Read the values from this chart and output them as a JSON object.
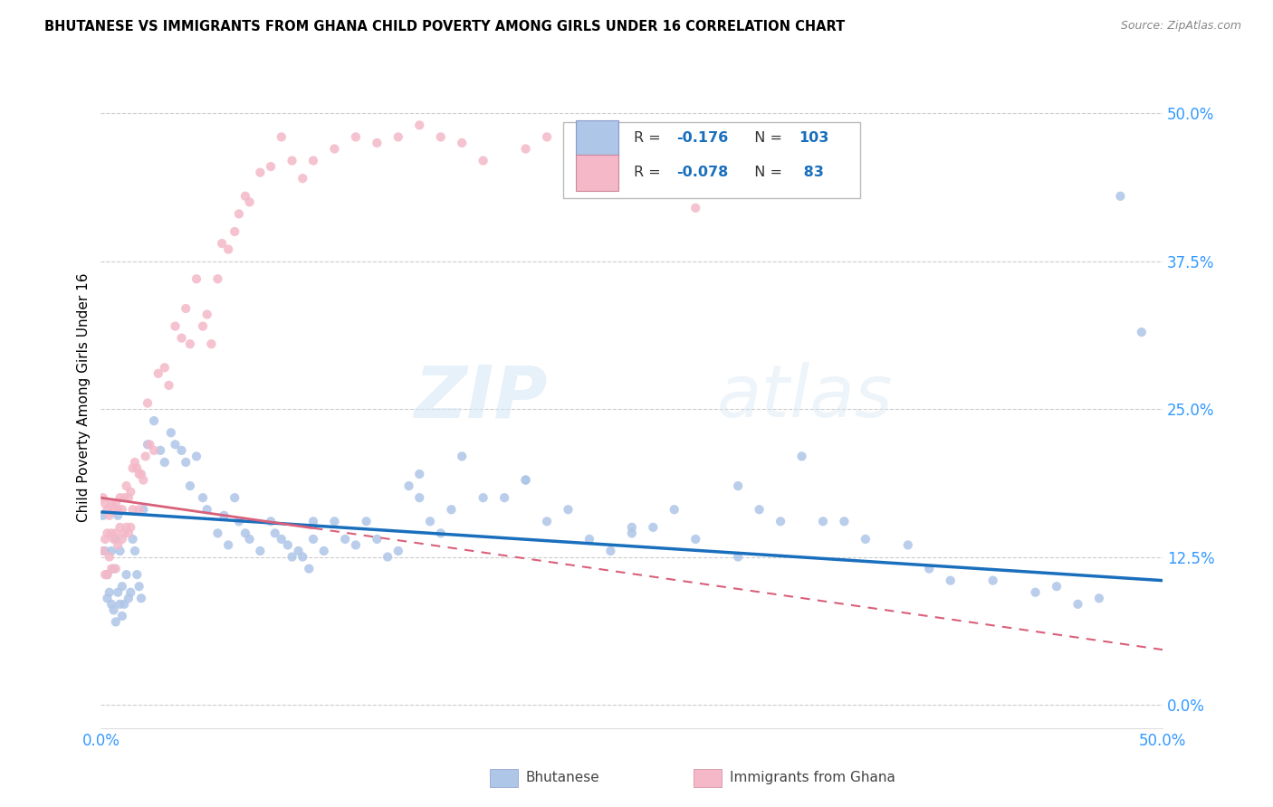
{
  "title": "BHUTANESE VS IMMIGRANTS FROM GHANA CHILD POVERTY AMONG GIRLS UNDER 16 CORRELATION CHART",
  "source": "Source: ZipAtlas.com",
  "ylabel": "Child Poverty Among Girls Under 16",
  "yticks_vals": [
    0.0,
    0.125,
    0.25,
    0.375,
    0.5
  ],
  "yticks_labels": [
    "0.0%",
    "12.5%",
    "25.0%",
    "37.5%",
    "50.0%"
  ],
  "xmin": 0.0,
  "xmax": 0.5,
  "ymin": -0.02,
  "ymax": 0.54,
  "bhutanese_color": "#aec6e8",
  "ghana_color": "#f4b8c8",
  "bhutanese_line_color": "#1a6fbd",
  "ghana_line_color": "#d9607a",
  "watermark_zip": "ZIP",
  "watermark_atlas": "atlas",
  "legend_R_bhutanese": "-0.176",
  "legend_N_bhutanese": "103",
  "legend_R_ghana": "-0.078",
  "legend_N_ghana": "83",
  "bhutanese_x": [
    0.001,
    0.002,
    0.003,
    0.003,
    0.004,
    0.005,
    0.005,
    0.006,
    0.006,
    0.007,
    0.007,
    0.008,
    0.008,
    0.009,
    0.009,
    0.01,
    0.01,
    0.011,
    0.012,
    0.013,
    0.014,
    0.015,
    0.016,
    0.017,
    0.018,
    0.019,
    0.02,
    0.022,
    0.025,
    0.028,
    0.03,
    0.033,
    0.035,
    0.038,
    0.04,
    0.042,
    0.045,
    0.048,
    0.05,
    0.055,
    0.058,
    0.06,
    0.063,
    0.065,
    0.068,
    0.07,
    0.075,
    0.08,
    0.082,
    0.085,
    0.088,
    0.09,
    0.093,
    0.095,
    0.098,
    0.1,
    0.105,
    0.11,
    0.115,
    0.12,
    0.125,
    0.13,
    0.135,
    0.14,
    0.145,
    0.15,
    0.155,
    0.16,
    0.165,
    0.17,
    0.18,
    0.19,
    0.2,
    0.21,
    0.22,
    0.23,
    0.24,
    0.25,
    0.26,
    0.27,
    0.28,
    0.3,
    0.31,
    0.32,
    0.33,
    0.34,
    0.35,
    0.36,
    0.38,
    0.39,
    0.4,
    0.42,
    0.44,
    0.45,
    0.46,
    0.47,
    0.48,
    0.49,
    0.3,
    0.25,
    0.2,
    0.15,
    0.1
  ],
  "bhutanese_y": [
    0.16,
    0.13,
    0.11,
    0.09,
    0.095,
    0.085,
    0.13,
    0.08,
    0.115,
    0.07,
    0.14,
    0.095,
    0.16,
    0.085,
    0.13,
    0.075,
    0.1,
    0.085,
    0.11,
    0.09,
    0.095,
    0.14,
    0.13,
    0.11,
    0.1,
    0.09,
    0.165,
    0.22,
    0.24,
    0.215,
    0.205,
    0.23,
    0.22,
    0.215,
    0.205,
    0.185,
    0.21,
    0.175,
    0.165,
    0.145,
    0.16,
    0.135,
    0.175,
    0.155,
    0.145,
    0.14,
    0.13,
    0.155,
    0.145,
    0.14,
    0.135,
    0.125,
    0.13,
    0.125,
    0.115,
    0.155,
    0.13,
    0.155,
    0.14,
    0.135,
    0.155,
    0.14,
    0.125,
    0.13,
    0.185,
    0.175,
    0.155,
    0.145,
    0.165,
    0.21,
    0.175,
    0.175,
    0.19,
    0.155,
    0.165,
    0.14,
    0.13,
    0.145,
    0.15,
    0.165,
    0.14,
    0.185,
    0.165,
    0.155,
    0.21,
    0.155,
    0.155,
    0.14,
    0.135,
    0.115,
    0.105,
    0.105,
    0.095,
    0.1,
    0.085,
    0.09,
    0.43,
    0.315,
    0.125,
    0.15,
    0.19,
    0.195,
    0.14
  ],
  "ghana_x": [
    0.001,
    0.001,
    0.002,
    0.002,
    0.002,
    0.003,
    0.003,
    0.003,
    0.004,
    0.004,
    0.005,
    0.005,
    0.005,
    0.006,
    0.006,
    0.007,
    0.007,
    0.007,
    0.008,
    0.008,
    0.009,
    0.009,
    0.01,
    0.01,
    0.011,
    0.011,
    0.012,
    0.012,
    0.013,
    0.013,
    0.014,
    0.014,
    0.015,
    0.015,
    0.016,
    0.017,
    0.018,
    0.018,
    0.019,
    0.02,
    0.021,
    0.022,
    0.023,
    0.025,
    0.027,
    0.03,
    0.032,
    0.035,
    0.038,
    0.04,
    0.042,
    0.045,
    0.048,
    0.05,
    0.052,
    0.055,
    0.057,
    0.06,
    0.063,
    0.065,
    0.068,
    0.07,
    0.075,
    0.08,
    0.085,
    0.09,
    0.095,
    0.1,
    0.11,
    0.12,
    0.13,
    0.14,
    0.15,
    0.16,
    0.17,
    0.18,
    0.2,
    0.21,
    0.22,
    0.23,
    0.24,
    0.25,
    0.28
  ],
  "ghana_y": [
    0.175,
    0.13,
    0.17,
    0.14,
    0.11,
    0.165,
    0.145,
    0.11,
    0.16,
    0.125,
    0.17,
    0.145,
    0.115,
    0.165,
    0.14,
    0.17,
    0.145,
    0.115,
    0.165,
    0.135,
    0.175,
    0.15,
    0.165,
    0.14,
    0.175,
    0.145,
    0.185,
    0.15,
    0.175,
    0.145,
    0.18,
    0.15,
    0.2,
    0.165,
    0.205,
    0.2,
    0.195,
    0.165,
    0.195,
    0.19,
    0.21,
    0.255,
    0.22,
    0.215,
    0.28,
    0.285,
    0.27,
    0.32,
    0.31,
    0.335,
    0.305,
    0.36,
    0.32,
    0.33,
    0.305,
    0.36,
    0.39,
    0.385,
    0.4,
    0.415,
    0.43,
    0.425,
    0.45,
    0.455,
    0.48,
    0.46,
    0.445,
    0.46,
    0.47,
    0.48,
    0.475,
    0.48,
    0.49,
    0.48,
    0.475,
    0.46,
    0.47,
    0.48,
    0.46,
    0.46,
    0.45,
    0.44,
    0.42
  ]
}
